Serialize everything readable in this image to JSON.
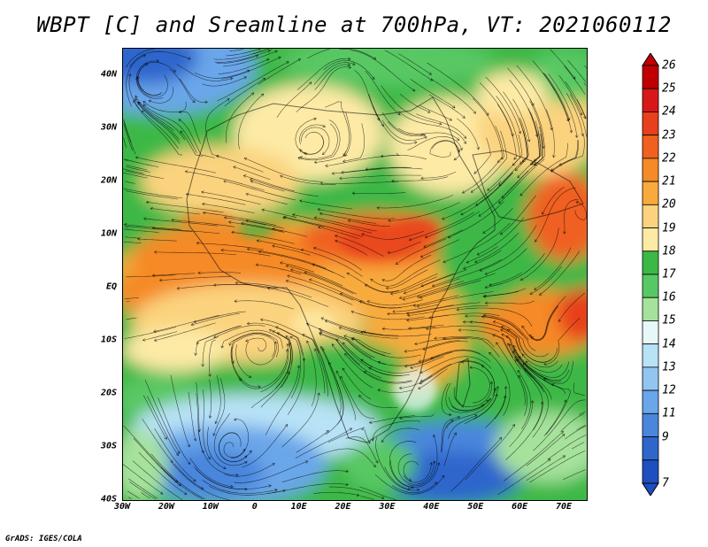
{
  "title": "WBPT [C] and Sreamline at 700hPa, VT: 2021060112",
  "credit": "GrADS: IGES/COLA",
  "map": {
    "projection": "lat-lon",
    "lon_range": [
      -30,
      75
    ],
    "lat_range": [
      -40,
      45
    ],
    "lat_ticks": [
      {
        "value": 40,
        "label": "40N"
      },
      {
        "value": 30,
        "label": "30N"
      },
      {
        "value": 20,
        "label": "20N"
      },
      {
        "value": 10,
        "label": "10N"
      },
      {
        "value": 0,
        "label": "EQ"
      },
      {
        "value": -10,
        "label": "10S"
      },
      {
        "value": -20,
        "label": "20S"
      },
      {
        "value": -30,
        "label": "30S"
      },
      {
        "value": -40,
        "label": "40S"
      }
    ],
    "lon_ticks": [
      {
        "value": -30,
        "label": "30W"
      },
      {
        "value": -20,
        "label": "20W"
      },
      {
        "value": -10,
        "label": "10W"
      },
      {
        "value": 0,
        "label": "0"
      },
      {
        "value": 10,
        "label": "10E"
      },
      {
        "value": 20,
        "label": "20E"
      },
      {
        "value": 30,
        "label": "30E"
      },
      {
        "value": 40,
        "label": "40E"
      },
      {
        "value": 50,
        "label": "50E"
      },
      {
        "value": 60,
        "label": "60E"
      },
      {
        "value": 70,
        "label": "70E"
      }
    ]
  },
  "colorbar": {
    "levels": [
      "26",
      "25",
      "24",
      "23",
      "22",
      "21",
      "20",
      "19",
      "18",
      "17",
      "16",
      "15",
      "14",
      "13",
      "12",
      "11",
      "9",
      "7"
    ],
    "colors": [
      "#c00000",
      "#d81818",
      "#e8401c",
      "#f06020",
      "#f58a28",
      "#f8aa3c",
      "#fbd37e",
      "#fdeaa5",
      "#3cb846",
      "#58c864",
      "#a6e29c",
      "#e6f8f8",
      "#b8e2f6",
      "#92c6f0",
      "#6aa6ea",
      "#4a86dc",
      "#2e66cc",
      "#1e4fbe"
    ]
  }
}
